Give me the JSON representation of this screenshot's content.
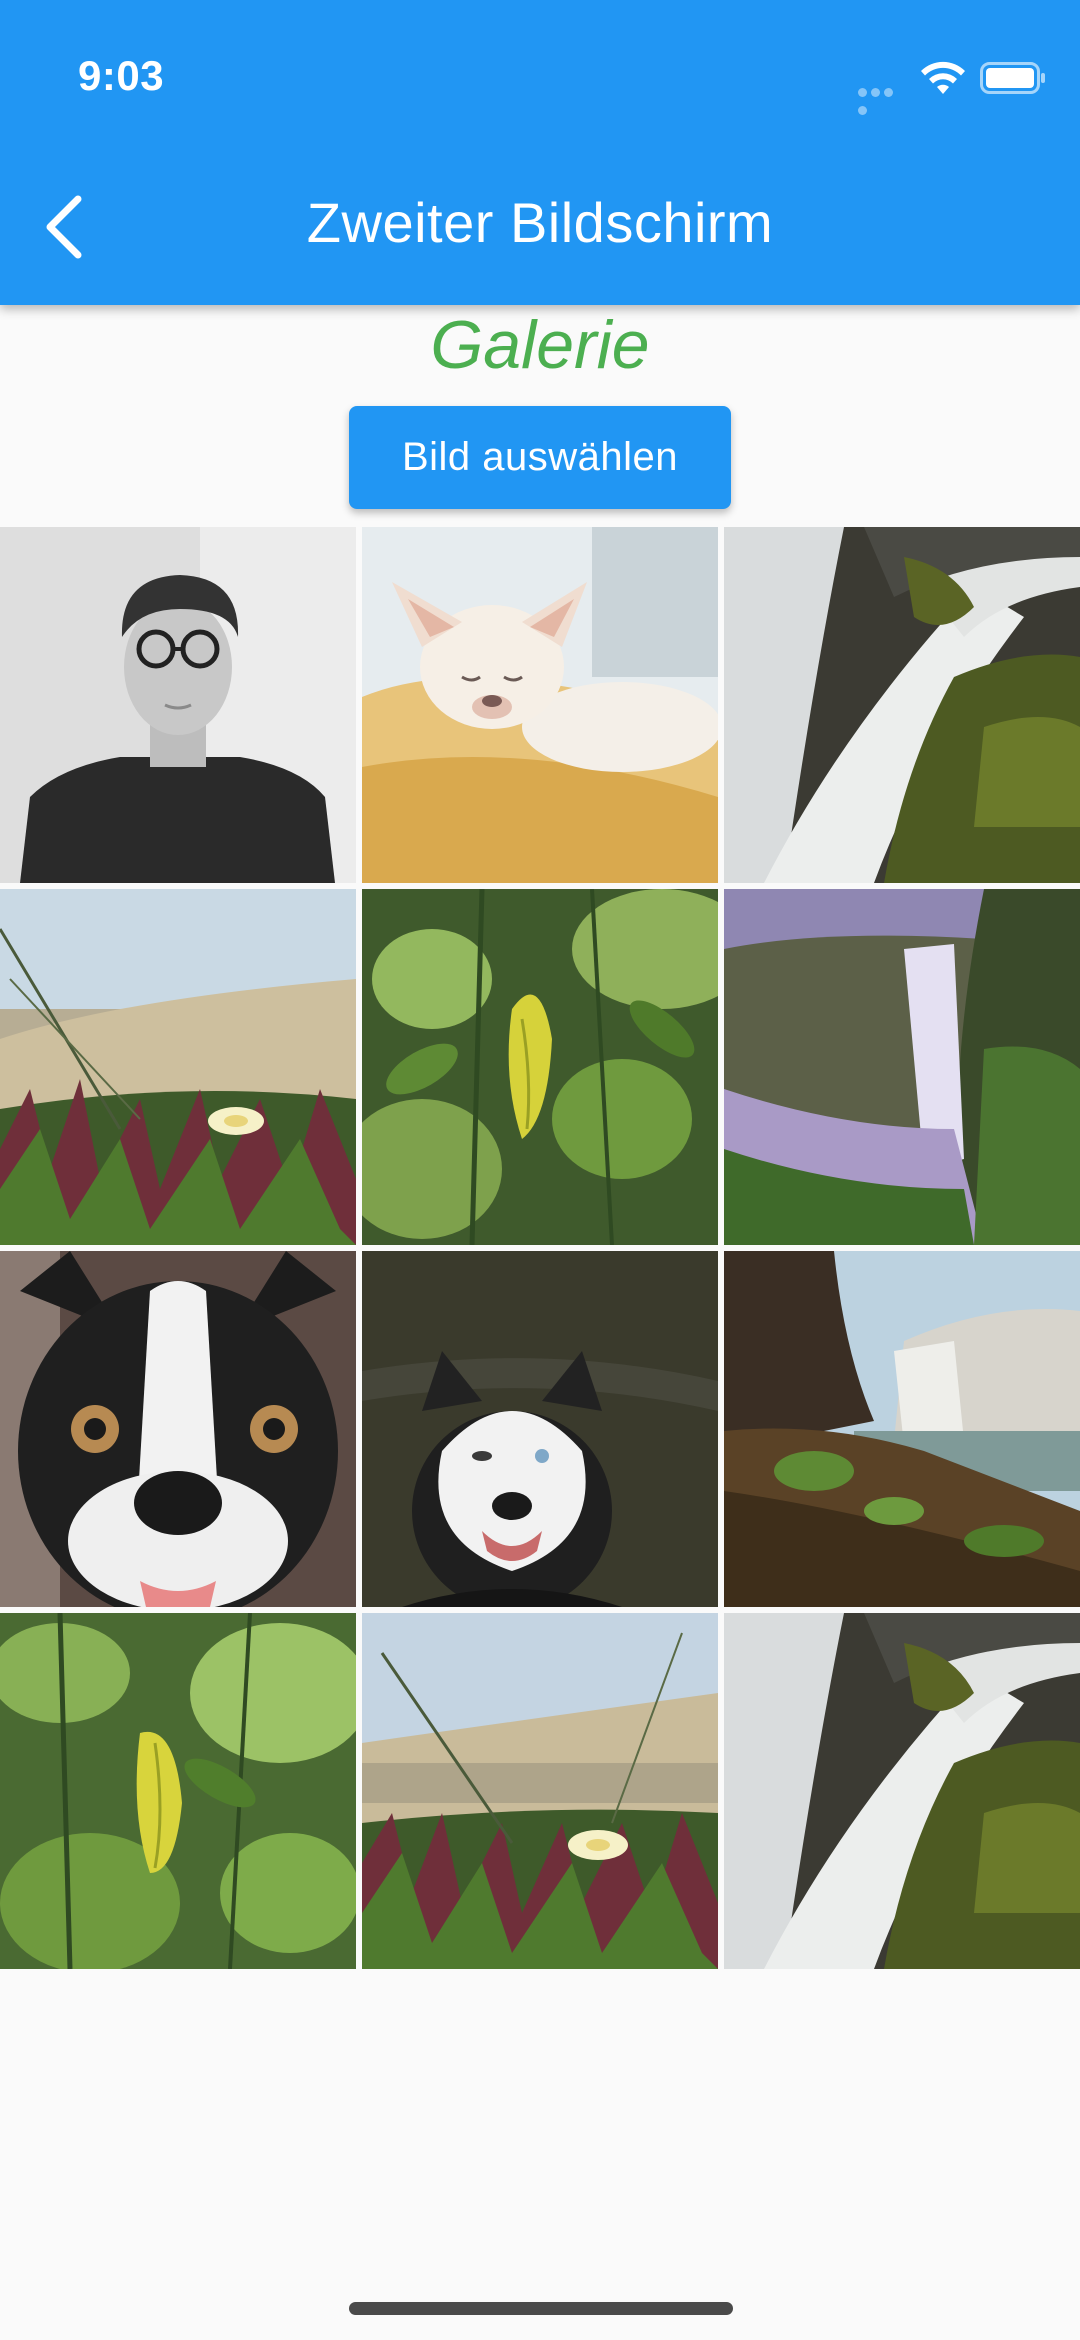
{
  "status_bar": {
    "time": "9:03"
  },
  "app_bar": {
    "back_icon": "chevron-left-icon",
    "title": "Zweiter Bildschirm"
  },
  "gallery": {
    "title": "Galerie",
    "title_color": "#4caf50",
    "pick_button_label": "Bild auswählen",
    "images": [
      "portrait-bw",
      "chihuahua",
      "waterfall-rocks",
      "beach-grass-flower",
      "green-leaves",
      "waterfall-cliff",
      "boston-terrier",
      "husky",
      "waterfall-river",
      "green-leaves",
      "beach-grass-flower",
      "waterfall-rocks"
    ]
  },
  "colors": {
    "primary": "#2196f3",
    "background": "#fafafa"
  }
}
